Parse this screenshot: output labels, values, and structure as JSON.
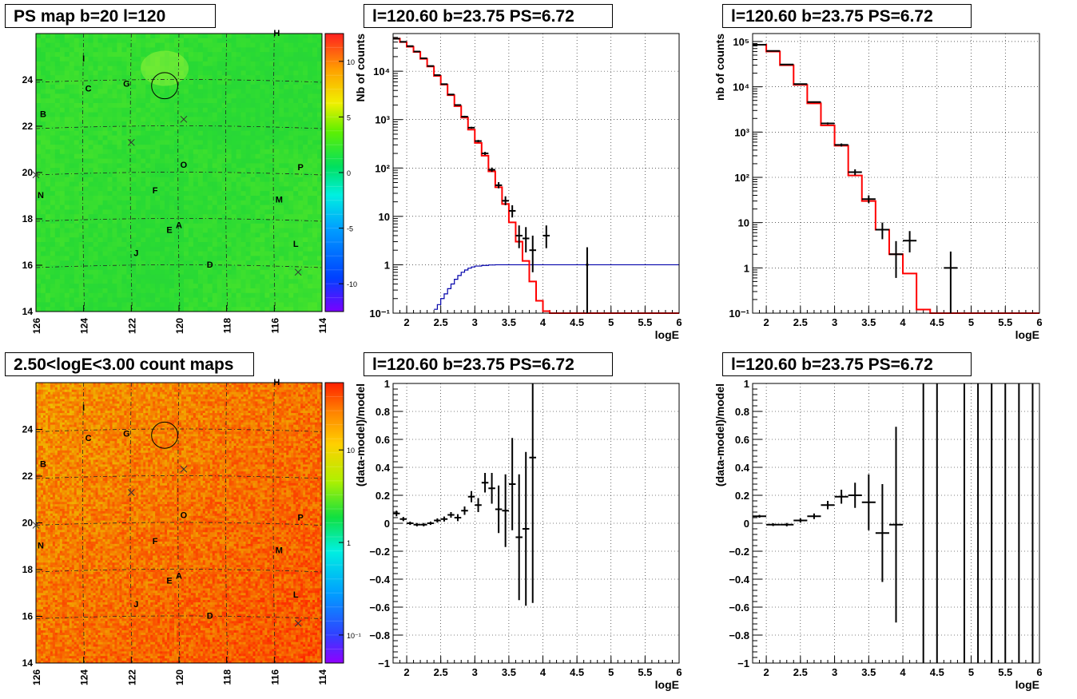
{
  "titles": {
    "map_top": "PS map b=20 l=120",
    "map_bottom": "2.50<logE<3.00 count maps",
    "spec1": "l=120.60 b=23.75 PS=6.72",
    "spec2": "l=120.60 b=23.75 PS=6.72",
    "ratio1": "l=120.60 b=23.75 PS=6.72",
    "ratio2": "l=120.60 b=23.75 PS=6.72"
  },
  "colors": {
    "data": "#000000",
    "model": "#ff0000",
    "background_model": "#0000aa"
  },
  "map_common": {
    "lon_ticks": [
      "126",
      "124",
      "122",
      "120",
      "118",
      "116",
      "114"
    ],
    "lat_ticks": [
      "14",
      "16",
      "18",
      "20",
      "22",
      "24"
    ],
    "sources": [
      {
        "label": "H",
        "l": 115.9,
        "b": 25.9
      },
      {
        "label": "I",
        "l": 124.0,
        "b": 24.8
      },
      {
        "label": "C",
        "l": 123.8,
        "b": 23.5
      },
      {
        "label": "G",
        "l": 122.2,
        "b": 23.7
      },
      {
        "label": "B",
        "l": 125.7,
        "b": 22.4
      },
      {
        "label": "O",
        "l": 119.8,
        "b": 20.2
      },
      {
        "label": "P",
        "l": 114.9,
        "b": 20.1
      },
      {
        "label": "N",
        "l": 125.8,
        "b": 18.9
      },
      {
        "label": "F",
        "l": 121.0,
        "b": 19.1
      },
      {
        "label": "M",
        "l": 115.8,
        "b": 18.7
      },
      {
        "label": "A",
        "l": 120.0,
        "b": 17.6
      },
      {
        "label": "E",
        "l": 120.4,
        "b": 17.4
      },
      {
        "label": "L",
        "l": 115.1,
        "b": 16.8
      },
      {
        "label": "J",
        "l": 121.8,
        "b": 16.4
      },
      {
        "label": "D",
        "l": 118.7,
        "b": 15.9
      }
    ],
    "crosses": [
      {
        "l": 119.8,
        "b": 22.3
      },
      {
        "l": 122.0,
        "b": 21.3
      },
      {
        "l": 115.0,
        "b": 15.7
      },
      {
        "l": 126.0,
        "b": 19.9
      }
    ],
    "circle": {
      "l": 120.6,
      "b": 23.75,
      "r": 0.55
    }
  },
  "map_top": {
    "colorbar_labels": [
      "10",
      "5",
      "0",
      "-5",
      "-10"
    ],
    "colorbar_min": -12.5,
    "colorbar_max": 12.5
  },
  "map_bottom": {
    "colorbar_labels": [
      "10",
      "1",
      "10⁻¹"
    ],
    "colorbar_scale": "log"
  },
  "axes_labels": {
    "xlabel": "logE",
    "spec1_ylabel": "Nb of counts",
    "spec2_ylabel": "nb of counts",
    "ratio_ylabel": "(data-model)/model"
  },
  "chart_data": [
    {
      "type": "line",
      "name": "spec1",
      "title": "l=120.60 b=23.75 PS=6.72",
      "xlabel": "logE",
      "ylabel": "Nb of counts",
      "xlim": [
        1.8,
        6.0
      ],
      "ylim": [
        0.1,
        60000
      ],
      "ylog": true,
      "x_ticks": [
        "2",
        "2.5",
        "3",
        "3.5",
        "4",
        "4.5",
        "5",
        "5.5",
        "6"
      ],
      "y_ticks": [
        "10⁻¹",
        "1",
        "10",
        "10²",
        "10³",
        "10⁴"
      ],
      "model_step": {
        "edges": [
          1.8,
          1.9,
          2.0,
          2.1,
          2.2,
          2.3,
          2.4,
          2.5,
          2.6,
          2.7,
          2.8,
          2.9,
          3.0,
          3.1,
          3.2,
          3.3,
          3.4,
          3.5,
          3.6,
          3.7,
          3.8,
          3.9,
          4.0,
          4.1,
          4.2,
          4.3,
          6.0
        ],
        "values": [
          47000,
          40000,
          32000,
          25000,
          18000,
          12500,
          8000,
          5300,
          3200,
          1900,
          1100,
          620,
          330,
          180,
          85,
          40,
          18,
          7.5,
          3,
          1.2,
          0.45,
          0.18,
          0.11,
          0.1,
          0.1,
          0.1
        ]
      },
      "background_step": {
        "edges": [
          2.4,
          2.45,
          2.5,
          2.55,
          2.6,
          2.65,
          2.7,
          2.75,
          2.8,
          2.85,
          2.9,
          2.95,
          3.0,
          3.1,
          3.2,
          3.3,
          3.5,
          6.0
        ],
        "values": [
          0.12,
          0.15,
          0.2,
          0.25,
          0.32,
          0.4,
          0.5,
          0.6,
          0.7,
          0.78,
          0.85,
          0.9,
          0.94,
          0.97,
          0.99,
          1.0,
          1.0
        ]
      },
      "data_points": [
        {
          "x": 1.85,
          "y": 47000,
          "lo": 46000,
          "hi": 48000,
          "xe": 0.05
        },
        {
          "x": 1.95,
          "y": 40500,
          "lo": 39800,
          "hi": 41300,
          "xe": 0.05
        },
        {
          "x": 2.05,
          "y": 33000,
          "lo": 32400,
          "hi": 33600,
          "xe": 0.05
        },
        {
          "x": 2.15,
          "y": 25500,
          "lo": 25000,
          "hi": 26100,
          "xe": 0.05
        },
        {
          "x": 2.25,
          "y": 18500,
          "lo": 18100,
          "hi": 18900,
          "xe": 0.05
        },
        {
          "x": 2.35,
          "y": 12800,
          "lo": 12500,
          "hi": 13100,
          "xe": 0.05
        },
        {
          "x": 2.45,
          "y": 8300,
          "lo": 8100,
          "hi": 8500,
          "xe": 0.05
        },
        {
          "x": 2.55,
          "y": 5400,
          "lo": 5250,
          "hi": 5550,
          "xe": 0.05
        },
        {
          "x": 2.65,
          "y": 3300,
          "lo": 3200,
          "hi": 3400,
          "xe": 0.05
        },
        {
          "x": 2.75,
          "y": 2000,
          "lo": 1930,
          "hi": 2070,
          "xe": 0.05
        },
        {
          "x": 2.85,
          "y": 1150,
          "lo": 1100,
          "hi": 1200,
          "xe": 0.05
        },
        {
          "x": 2.95,
          "y": 680,
          "lo": 650,
          "hi": 710,
          "xe": 0.05
        },
        {
          "x": 3.05,
          "y": 360,
          "lo": 340,
          "hi": 380,
          "xe": 0.05
        },
        {
          "x": 3.15,
          "y": 200,
          "lo": 185,
          "hi": 215,
          "xe": 0.05
        },
        {
          "x": 3.25,
          "y": 92,
          "lo": 83,
          "hi": 102,
          "xe": 0.05
        },
        {
          "x": 3.35,
          "y": 44,
          "lo": 38,
          "hi": 51,
          "xe": 0.05
        },
        {
          "x": 3.45,
          "y": 21,
          "lo": 17,
          "hi": 26,
          "xe": 0.05
        },
        {
          "x": 3.55,
          "y": 13,
          "lo": 9.5,
          "hi": 17,
          "xe": 0.05
        },
        {
          "x": 3.65,
          "y": 4,
          "lo": 2.2,
          "hi": 6.5,
          "xe": 0.05
        },
        {
          "x": 3.75,
          "y": 3.5,
          "lo": 1.8,
          "hi": 6,
          "xe": 0.05
        },
        {
          "x": 3.85,
          "y": 2,
          "lo": 0.7,
          "hi": 4,
          "xe": 0.05
        },
        {
          "x": 4.05,
          "y": 4,
          "lo": 2.2,
          "hi": 6.5,
          "xe": 0.05
        },
        {
          "x": 4.65,
          "y": 1,
          "lo": 0.1,
          "hi": 2.3,
          "xe": 0.02
        }
      ]
    },
    {
      "type": "line",
      "name": "spec2",
      "title": "l=120.60 b=23.75 PS=6.72",
      "xlabel": "logE",
      "ylabel": "nb of counts",
      "xlim": [
        1.8,
        6.0
      ],
      "ylim": [
        0.1,
        150000
      ],
      "ylog": true,
      "x_ticks": [
        "2",
        "2.5",
        "3",
        "3.5",
        "4",
        "4.5",
        "5",
        "5.5",
        "6"
      ],
      "y_ticks": [
        "10⁻¹",
        "1",
        "10",
        "10²",
        "10³",
        "10⁴",
        "10⁵"
      ],
      "model_step": {
        "edges": [
          1.8,
          2.0,
          2.2,
          2.4,
          2.6,
          2.8,
          3.0,
          3.2,
          3.4,
          3.6,
          3.8,
          4.0,
          4.2,
          4.4,
          6.0
        ],
        "values": [
          85000,
          60000,
          30000,
          11000,
          4300,
          1400,
          500,
          110,
          30,
          7,
          2,
          0.75,
          0.12,
          0.1
        ]
      },
      "data_points": [
        {
          "x": 1.9,
          "y": 85000,
          "lo": 84000,
          "hi": 86000,
          "xe": 0.1
        },
        {
          "x": 2.1,
          "y": 62000,
          "lo": 61200,
          "hi": 62800,
          "xe": 0.1
        },
        {
          "x": 2.3,
          "y": 31000,
          "lo": 30400,
          "hi": 31600,
          "xe": 0.1
        },
        {
          "x": 2.5,
          "y": 11500,
          "lo": 11200,
          "hi": 11800,
          "xe": 0.1
        },
        {
          "x": 2.7,
          "y": 4600,
          "lo": 4450,
          "hi": 4750,
          "xe": 0.1
        },
        {
          "x": 2.9,
          "y": 1550,
          "lo": 1470,
          "hi": 1630,
          "xe": 0.1
        },
        {
          "x": 3.1,
          "y": 520,
          "lo": 480,
          "hi": 560,
          "xe": 0.1
        },
        {
          "x": 3.3,
          "y": 130,
          "lo": 112,
          "hi": 150,
          "xe": 0.1
        },
        {
          "x": 3.5,
          "y": 33,
          "lo": 27,
          "hi": 40,
          "xe": 0.1
        },
        {
          "x": 3.7,
          "y": 7,
          "lo": 4.3,
          "hi": 10,
          "xe": 0.1
        },
        {
          "x": 3.9,
          "y": 2,
          "lo": 0.6,
          "hi": 3.9,
          "xe": 0.1
        },
        {
          "x": 4.1,
          "y": 4,
          "lo": 2.2,
          "hi": 6.5,
          "xe": 0.1
        },
        {
          "x": 4.7,
          "y": 1,
          "lo": 0.1,
          "hi": 2.3,
          "xe": 0.1
        }
      ]
    },
    {
      "type": "scatter",
      "name": "ratio1",
      "title": "l=120.60 b=23.75 PS=6.72",
      "xlabel": "logE",
      "ylabel": "(data-model)/model",
      "xlim": [
        1.8,
        6.0
      ],
      "ylim": [
        -1,
        1
      ],
      "x_ticks": [
        "2",
        "2.5",
        "3",
        "3.5",
        "4",
        "4.5",
        "5",
        "5.5",
        "6"
      ],
      "y_ticks": [
        "−1",
        "−0.8",
        "−0.6",
        "−0.4",
        "−0.2",
        "0",
        "0.2",
        "0.4",
        "0.6",
        "0.8",
        "1"
      ],
      "data_points": [
        {
          "x": 1.85,
          "y": 0.07,
          "lo": 0.05,
          "hi": 0.09,
          "xe": 0.05
        },
        {
          "x": 1.95,
          "y": 0.03,
          "lo": 0.015,
          "hi": 0.045,
          "xe": 0.05
        },
        {
          "x": 2.05,
          "y": 0.0,
          "lo": -0.012,
          "hi": 0.012,
          "xe": 0.05
        },
        {
          "x": 2.15,
          "y": -0.01,
          "lo": -0.022,
          "hi": 0.002,
          "xe": 0.05
        },
        {
          "x": 2.25,
          "y": -0.01,
          "lo": -0.022,
          "hi": 0.002,
          "xe": 0.05
        },
        {
          "x": 2.35,
          "y": 0.0,
          "lo": -0.012,
          "hi": 0.012,
          "xe": 0.05
        },
        {
          "x": 2.45,
          "y": 0.02,
          "lo": 0.005,
          "hi": 0.035,
          "xe": 0.05
        },
        {
          "x": 2.55,
          "y": 0.03,
          "lo": 0.012,
          "hi": 0.048,
          "xe": 0.05
        },
        {
          "x": 2.65,
          "y": 0.06,
          "lo": 0.04,
          "hi": 0.08,
          "xe": 0.05
        },
        {
          "x": 2.75,
          "y": 0.04,
          "lo": 0.015,
          "hi": 0.065,
          "xe": 0.05
        },
        {
          "x": 2.85,
          "y": 0.09,
          "lo": 0.06,
          "hi": 0.12,
          "xe": 0.05
        },
        {
          "x": 2.95,
          "y": 0.19,
          "lo": 0.15,
          "hi": 0.23,
          "xe": 0.05
        },
        {
          "x": 3.05,
          "y": 0.13,
          "lo": 0.08,
          "hi": 0.18,
          "xe": 0.05
        },
        {
          "x": 3.15,
          "y": 0.29,
          "lo": 0.22,
          "hi": 0.36,
          "xe": 0.05
        },
        {
          "x": 3.25,
          "y": 0.25,
          "lo": 0.14,
          "hi": 0.36,
          "xe": 0.05
        },
        {
          "x": 3.35,
          "y": 0.1,
          "lo": -0.07,
          "hi": 0.27,
          "xe": 0.05
        },
        {
          "x": 3.45,
          "y": 0.09,
          "lo": -0.17,
          "hi": 0.35,
          "xe": 0.05
        },
        {
          "x": 3.55,
          "y": 0.28,
          "lo": -0.05,
          "hi": 0.61,
          "xe": 0.05
        },
        {
          "x": 3.65,
          "y": -0.1,
          "lo": -0.55,
          "hi": 0.35,
          "xe": 0.05
        },
        {
          "x": 3.75,
          "y": -0.04,
          "lo": -0.59,
          "hi": 0.51,
          "xe": 0.05
        },
        {
          "x": 3.85,
          "y": 0.47,
          "lo": -0.57,
          "hi": 1.0,
          "xe": 0.05
        }
      ]
    },
    {
      "type": "scatter",
      "name": "ratio2",
      "title": "l=120.60 b=23.75 PS=6.72",
      "xlabel": "logE",
      "ylabel": "(data-model)/model",
      "xlim": [
        1.8,
        6.0
      ],
      "ylim": [
        -1,
        1
      ],
      "x_ticks": [
        "2",
        "2.5",
        "3",
        "3.5",
        "4",
        "4.5",
        "5",
        "5.5",
        "6"
      ],
      "y_ticks": [
        "−1",
        "−0.8",
        "−0.6",
        "−0.4",
        "−0.2",
        "0",
        "0.2",
        "0.4",
        "0.6",
        "0.8",
        "1"
      ],
      "data_points": [
        {
          "x": 1.9,
          "y": 0.05,
          "lo": 0.04,
          "hi": 0.06,
          "xe": 0.1
        },
        {
          "x": 2.1,
          "y": -0.01,
          "lo": -0.02,
          "hi": 0.0,
          "xe": 0.1
        },
        {
          "x": 2.3,
          "y": -0.01,
          "lo": -0.022,
          "hi": 0.002,
          "xe": 0.1
        },
        {
          "x": 2.5,
          "y": 0.02,
          "lo": 0.005,
          "hi": 0.035,
          "xe": 0.1
        },
        {
          "x": 2.7,
          "y": 0.05,
          "lo": 0.03,
          "hi": 0.07,
          "xe": 0.1
        },
        {
          "x": 2.9,
          "y": 0.13,
          "lo": 0.1,
          "hi": 0.16,
          "xe": 0.1
        },
        {
          "x": 3.1,
          "y": 0.19,
          "lo": 0.14,
          "hi": 0.24,
          "xe": 0.1
        },
        {
          "x": 3.3,
          "y": 0.2,
          "lo": 0.11,
          "hi": 0.29,
          "xe": 0.1
        },
        {
          "x": 3.5,
          "y": 0.15,
          "lo": -0.05,
          "hi": 0.35,
          "xe": 0.1
        },
        {
          "x": 3.7,
          "y": -0.07,
          "lo": -0.42,
          "hi": 0.28,
          "xe": 0.1
        },
        {
          "x": 3.9,
          "y": -0.01,
          "lo": -0.71,
          "hi": 0.69,
          "xe": 0.1
        },
        {
          "x": 4.3,
          "y": 1.0,
          "lo": -1.0,
          "hi": 1.0,
          "xe": 0.0
        },
        {
          "x": 4.5,
          "y": 1.0,
          "lo": -1.0,
          "hi": 1.0,
          "xe": 0.0
        },
        {
          "x": 4.9,
          "y": 1.0,
          "lo": -1.0,
          "hi": 1.0,
          "xe": 0.0
        },
        {
          "x": 5.1,
          "y": 1.0,
          "lo": -1.0,
          "hi": 1.0,
          "xe": 0.0
        },
        {
          "x": 5.3,
          "y": 1.0,
          "lo": -1.0,
          "hi": 1.0,
          "xe": 0.0
        },
        {
          "x": 5.5,
          "y": 1.0,
          "lo": -1.0,
          "hi": 1.0,
          "xe": 0.0
        },
        {
          "x": 5.7,
          "y": 1.0,
          "lo": -1.0,
          "hi": 1.0,
          "xe": 0.0
        },
        {
          "x": 5.9,
          "y": 1.0,
          "lo": -1.0,
          "hi": 1.0,
          "xe": 0.0
        }
      ]
    }
  ]
}
